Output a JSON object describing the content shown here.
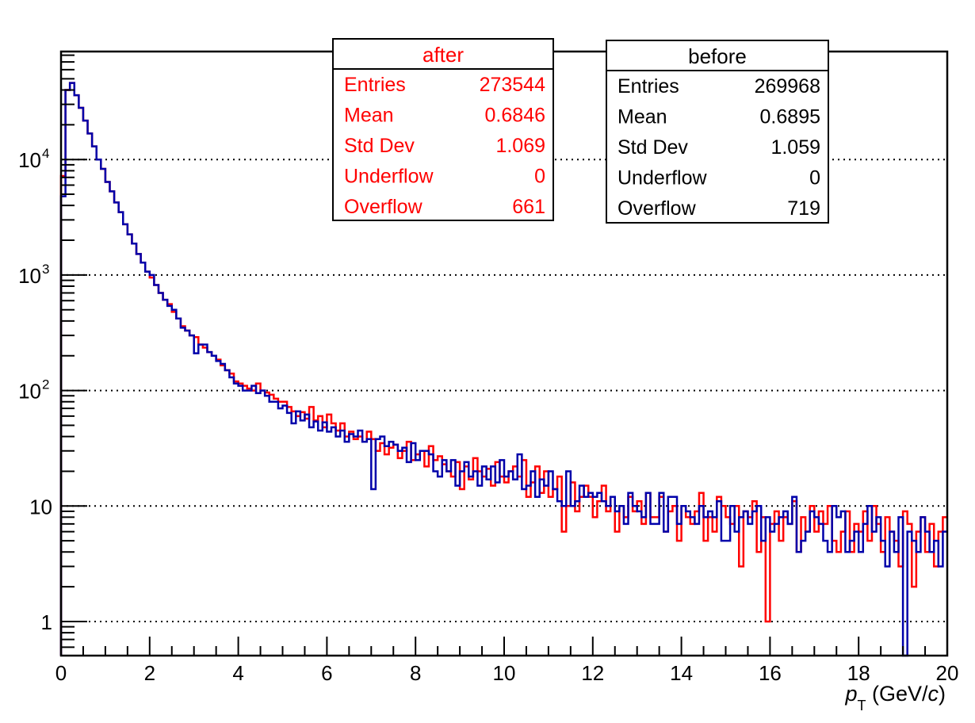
{
  "chart_data": {
    "type": "histogram-step",
    "title": "",
    "xlabel_main": "p",
    "xlabel_sub": "T",
    "xlabel_unit": " (GeV/",
    "xlabel_c": "c",
    "xlabel_close": ")",
    "xlim": [
      0,
      20
    ],
    "ylim": [
      0.5,
      86000
    ],
    "yscale": "log",
    "grid": "horizontal dotted at decades",
    "bin_width": 0.1,
    "x_ticks": [
      "0",
      "2",
      "4",
      "6",
      "8",
      "10",
      "12",
      "14",
      "16",
      "18",
      "20"
    ],
    "y_ticks": [
      {
        "value": 1,
        "base": "1",
        "exp": ""
      },
      {
        "value": 10,
        "base": "10",
        "exp": ""
      },
      {
        "value": 100,
        "base": "10",
        "exp": "2"
      },
      {
        "value": 1000,
        "base": "10",
        "exp": "3"
      },
      {
        "value": 10000,
        "base": "10",
        "exp": "4"
      }
    ],
    "series": [
      {
        "name": "after",
        "color": "#ff0000",
        "values": [
          7200,
          40000,
          46000,
          36000,
          28000,
          21700,
          16800,
          13000,
          10000,
          8300,
          6400,
          5300,
          4250,
          3500,
          2750,
          2250,
          1870,
          1520,
          1280,
          1070,
          950,
          820,
          700,
          610,
          560,
          480,
          420,
          360,
          330,
          300,
          290,
          250,
          235,
          215,
          200,
          185,
          165,
          150,
          140,
          120,
          115,
          110,
          104,
          100,
          115,
          100,
          96,
          92,
          85,
          80,
          80,
          72,
          66,
          60,
          65,
          57,
          72,
          55,
          60,
          48,
          62,
          52,
          45,
          52,
          40,
          44,
          38,
          40,
          36,
          44,
          38,
          30,
          35,
          28,
          32,
          34,
          26,
          30,
          36,
          25,
          28,
          30,
          22,
          33,
          25,
          27,
          23,
          20,
          18,
          24,
          14,
          22,
          17,
          26,
          20,
          18,
          21,
          15,
          24,
          18,
          16,
          20,
          22,
          18,
          25,
          12,
          16,
          22,
          13,
          20,
          12,
          14,
          18,
          6,
          10,
          16,
          9,
          12,
          15,
          12,
          8,
          11,
          15,
          9,
          12,
          6,
          10,
          8,
          12,
          9,
          11,
          7,
          13,
          8,
          8,
          12,
          6,
          9,
          10,
          5,
          10,
          8,
          7,
          9,
          13,
          5,
          8,
          6,
          12,
          10,
          8,
          7,
          10,
          3,
          9,
          8,
          11,
          4,
          8,
          1,
          7,
          9,
          5,
          8,
          7,
          11,
          4,
          8,
          6,
          10,
          6,
          9,
          7,
          10,
          5,
          4,
          6,
          9,
          4,
          7,
          6,
          9,
          5,
          10,
          7,
          4,
          8,
          6,
          5,
          3,
          9,
          7,
          2,
          6,
          8,
          4,
          7,
          3,
          6,
          8
        ]
      },
      {
        "name": "before",
        "color": "#0000aa",
        "values": [
          4800,
          40000,
          46000,
          36000,
          28000,
          21700,
          16800,
          13000,
          10000,
          8300,
          6400,
          5300,
          4250,
          3500,
          2750,
          2250,
          1870,
          1520,
          1280,
          1070,
          1000,
          820,
          700,
          610,
          540,
          500,
          420,
          350,
          330,
          300,
          210,
          250,
          250,
          215,
          200,
          180,
          170,
          150,
          130,
          115,
          110,
          100,
          100,
          110,
          95,
          100,
          90,
          80,
          80,
          70,
          74,
          64,
          52,
          66,
          55,
          62,
          48,
          54,
          45,
          53,
          44,
          48,
          40,
          45,
          36,
          42,
          40,
          45,
          36,
          38,
          14,
          38,
          40,
          33,
          36,
          34,
          30,
          32,
          24,
          35,
          25,
          30,
          30,
          28,
          20,
          18,
          25,
          20,
          25,
          15,
          20,
          24,
          18,
          20,
          15,
          22,
          17,
          22,
          16,
          25,
          18,
          20,
          17,
          28,
          14,
          15,
          20,
          12,
          17,
          15,
          20,
          14,
          11,
          10,
          20,
          10,
          11,
          15,
          12,
          13,
          12,
          13,
          11,
          10,
          12,
          9,
          10,
          7,
          13,
          10,
          9,
          8,
          13,
          7,
          7,
          13,
          6,
          12,
          12,
          7,
          10,
          9,
          8,
          7,
          10,
          8,
          9,
          8,
          11,
          5,
          5,
          10,
          6,
          8,
          9,
          7,
          9,
          10,
          5,
          8,
          6,
          7,
          8,
          9,
          7,
          12,
          4,
          5,
          6,
          9,
          8,
          7,
          5,
          4,
          10,
          8,
          9,
          4,
          5,
          6,
          4,
          7,
          10,
          6,
          8,
          5,
          3,
          6,
          4,
          8,
          0,
          6,
          5,
          4,
          8,
          6,
          4,
          5,
          3,
          6
        ]
      }
    ],
    "stats_boxes": [
      {
        "title": "after",
        "color": "#ff0000",
        "rows": [
          {
            "label": "Entries",
            "value": "273544"
          },
          {
            "label": "Mean",
            "value": "0.6846"
          },
          {
            "label": "Std Dev",
            "value": "1.069"
          },
          {
            "label": "Underflow",
            "value": "0"
          },
          {
            "label": "Overflow",
            "value": "661"
          }
        ]
      },
      {
        "title": "before",
        "color": "#000000",
        "rows": [
          {
            "label": "Entries",
            "value": "269968"
          },
          {
            "label": "Mean",
            "value": "0.6895"
          },
          {
            "label": "Std Dev",
            "value": "1.059"
          },
          {
            "label": "Underflow",
            "value": "0"
          },
          {
            "label": "Overflow",
            "value": "719"
          }
        ]
      }
    ]
  }
}
